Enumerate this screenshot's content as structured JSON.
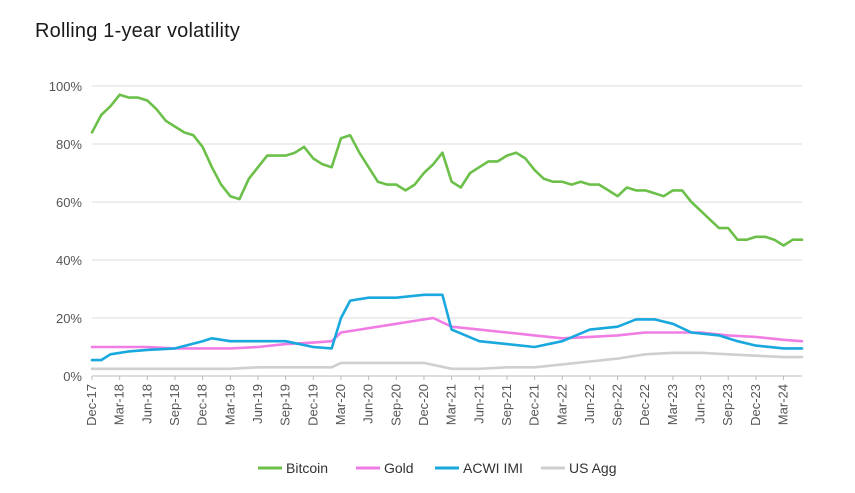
{
  "chart_data": {
    "type": "line",
    "title": "Rolling 1-year volatility",
    "xlabel": "",
    "ylabel": "",
    "ylim": [
      0,
      100
    ],
    "y_ticks": [
      0,
      20,
      40,
      60,
      80,
      100
    ],
    "y_tick_labels": [
      "0%",
      "20%",
      "40%",
      "60%",
      "80%",
      "100%"
    ],
    "x_ticks": [
      "2017-12",
      "2018-03",
      "2018-06",
      "2018-09",
      "2018-12",
      "2019-03",
      "2019-06",
      "2019-09",
      "2019-12",
      "2020-03",
      "2020-06",
      "2020-09",
      "2020-12",
      "2021-03",
      "2021-06",
      "2021-09",
      "2021-12",
      "2022-03",
      "2022-06",
      "2022-09",
      "2022-12",
      "2023-03",
      "2023-06",
      "2023-09",
      "2023-12",
      "2024-03"
    ],
    "x_tick_labels": [
      "Dec-17",
      "Mar-18",
      "Jun-18",
      "Sep-18",
      "Dec-18",
      "Mar-19",
      "Jun-19",
      "Sep-19",
      "Dec-19",
      "Mar-20",
      "Jun-20",
      "Sep-20",
      "Dec-20",
      "Mar-21",
      "Jun-21",
      "Sep-21",
      "Dec-21",
      "Mar-22",
      "Jun-22",
      "Sep-22",
      "Dec-22",
      "Mar-23",
      "Jun-23",
      "Sep-23",
      "Dec-23",
      "Mar-24"
    ],
    "x_range": [
      "2017-12",
      "2024-05"
    ],
    "grid": "horizontal",
    "legend_position": "bottom",
    "series": [
      {
        "name": "Bitcoin",
        "color": "#6cc04a",
        "points": [
          [
            "2017-12",
            84
          ],
          [
            "2018-01",
            90
          ],
          [
            "2018-02",
            93
          ],
          [
            "2018-03",
            97
          ],
          [
            "2018-04",
            96
          ],
          [
            "2018-05",
            96
          ],
          [
            "2018-06",
            95
          ],
          [
            "2018-07",
            92
          ],
          [
            "2018-08",
            88
          ],
          [
            "2018-09",
            86
          ],
          [
            "2018-10",
            84
          ],
          [
            "2018-11",
            83
          ],
          [
            "2018-12",
            79
          ],
          [
            "2019-01",
            72
          ],
          [
            "2019-02",
            66
          ],
          [
            "2019-03",
            62
          ],
          [
            "2019-04",
            61
          ],
          [
            "2019-05",
            68
          ],
          [
            "2019-06",
            72
          ],
          [
            "2019-07",
            76
          ],
          [
            "2019-08",
            76
          ],
          [
            "2019-09",
            76
          ],
          [
            "2019-10",
            77
          ],
          [
            "2019-11",
            79
          ],
          [
            "2019-12",
            75
          ],
          [
            "2020-01",
            73
          ],
          [
            "2020-02",
            72
          ],
          [
            "2020-03",
            82
          ],
          [
            "2020-04",
            83
          ],
          [
            "2020-05",
            77
          ],
          [
            "2020-06",
            72
          ],
          [
            "2020-07",
            67
          ],
          [
            "2020-08",
            66
          ],
          [
            "2020-09",
            66
          ],
          [
            "2020-10",
            64
          ],
          [
            "2020-11",
            66
          ],
          [
            "2020-12",
            70
          ],
          [
            "2021-01",
            73
          ],
          [
            "2021-02",
            77
          ],
          [
            "2021-03",
            67
          ],
          [
            "2021-04",
            65
          ],
          [
            "2021-05",
            70
          ],
          [
            "2021-06",
            72
          ],
          [
            "2021-07",
            74
          ],
          [
            "2021-08",
            74
          ],
          [
            "2021-09",
            76
          ],
          [
            "2021-10",
            77
          ],
          [
            "2021-11",
            75
          ],
          [
            "2021-12",
            71
          ],
          [
            "2022-01",
            68
          ],
          [
            "2022-02",
            67
          ],
          [
            "2022-03",
            67
          ],
          [
            "2022-04",
            66
          ],
          [
            "2022-05",
            67
          ],
          [
            "2022-06",
            66
          ],
          [
            "2022-07",
            66
          ],
          [
            "2022-08",
            64
          ],
          [
            "2022-09",
            62
          ],
          [
            "2022-10",
            65
          ],
          [
            "2022-11",
            64
          ],
          [
            "2022-12",
            64
          ],
          [
            "2023-01",
            63
          ],
          [
            "2023-02",
            62
          ],
          [
            "2023-03",
            64
          ],
          [
            "2023-04",
            64
          ],
          [
            "2023-05",
            60
          ],
          [
            "2023-06",
            57
          ],
          [
            "2023-07",
            54
          ],
          [
            "2023-08",
            51
          ],
          [
            "2023-09",
            51
          ],
          [
            "2023-10",
            47
          ],
          [
            "2023-11",
            47
          ],
          [
            "2023-12",
            48
          ],
          [
            "2024-01",
            48
          ],
          [
            "2024-02",
            47
          ],
          [
            "2024-03",
            45
          ],
          [
            "2024-04",
            47
          ],
          [
            "2024-05",
            47
          ]
        ]
      },
      {
        "name": "Gold",
        "color": "#f07de4",
        "points": [
          [
            "2017-12",
            10
          ],
          [
            "2018-03",
            10
          ],
          [
            "2018-06",
            10
          ],
          [
            "2018-09",
            9.5
          ],
          [
            "2018-12",
            9.5
          ],
          [
            "2019-03",
            9.5
          ],
          [
            "2019-06",
            10
          ],
          [
            "2019-09",
            11
          ],
          [
            "2019-12",
            11.5
          ],
          [
            "2020-02",
            12
          ],
          [
            "2020-03",
            15
          ],
          [
            "2020-05",
            16
          ],
          [
            "2020-07",
            17
          ],
          [
            "2020-09",
            18
          ],
          [
            "2020-11",
            19
          ],
          [
            "2021-01",
            20
          ],
          [
            "2021-03",
            17
          ],
          [
            "2021-06",
            16
          ],
          [
            "2021-09",
            15
          ],
          [
            "2021-12",
            14
          ],
          [
            "2022-03",
            13
          ],
          [
            "2022-06",
            13.5
          ],
          [
            "2022-09",
            14
          ],
          [
            "2022-12",
            15
          ],
          [
            "2023-03",
            15
          ],
          [
            "2023-06",
            15
          ],
          [
            "2023-09",
            14
          ],
          [
            "2023-12",
            13.5
          ],
          [
            "2024-03",
            12.5
          ],
          [
            "2024-05",
            12
          ]
        ]
      },
      {
        "name": "ACWI IMI",
        "color": "#19a8de",
        "points": [
          [
            "2017-12",
            5.5
          ],
          [
            "2018-01",
            5.5
          ],
          [
            "2018-02",
            7.5
          ],
          [
            "2018-04",
            8.5
          ],
          [
            "2018-06",
            9
          ],
          [
            "2018-09",
            9.5
          ],
          [
            "2018-12",
            12
          ],
          [
            "2019-01",
            13
          ],
          [
            "2019-03",
            12
          ],
          [
            "2019-06",
            12
          ],
          [
            "2019-09",
            12
          ],
          [
            "2019-12",
            10
          ],
          [
            "2020-02",
            9.5
          ],
          [
            "2020-03",
            20
          ],
          [
            "2020-04",
            26
          ],
          [
            "2020-06",
            27
          ],
          [
            "2020-09",
            27
          ],
          [
            "2020-12",
            28
          ],
          [
            "2021-02",
            28
          ],
          [
            "2021-03",
            16
          ],
          [
            "2021-06",
            12
          ],
          [
            "2021-09",
            11
          ],
          [
            "2021-12",
            10
          ],
          [
            "2022-03",
            12
          ],
          [
            "2022-06",
            16
          ],
          [
            "2022-09",
            17
          ],
          [
            "2022-11",
            19.5
          ],
          [
            "2023-01",
            19.5
          ],
          [
            "2023-03",
            18
          ],
          [
            "2023-05",
            15
          ],
          [
            "2023-08",
            14
          ],
          [
            "2023-10",
            12
          ],
          [
            "2023-12",
            10.5
          ],
          [
            "2024-03",
            9.5
          ],
          [
            "2024-05",
            9.5
          ]
        ]
      },
      {
        "name": "US Agg",
        "color": "#cfcfcf",
        "points": [
          [
            "2017-12",
            2.5
          ],
          [
            "2018-03",
            2.5
          ],
          [
            "2018-06",
            2.5
          ],
          [
            "2018-09",
            2.5
          ],
          [
            "2018-12",
            2.5
          ],
          [
            "2019-03",
            2.5
          ],
          [
            "2019-06",
            3
          ],
          [
            "2019-09",
            3
          ],
          [
            "2019-12",
            3
          ],
          [
            "2020-02",
            3
          ],
          [
            "2020-03",
            4.5
          ],
          [
            "2020-06",
            4.5
          ],
          [
            "2020-09",
            4.5
          ],
          [
            "2020-12",
            4.5
          ],
          [
            "2021-03",
            2.5
          ],
          [
            "2021-06",
            2.5
          ],
          [
            "2021-09",
            3
          ],
          [
            "2021-12",
            3
          ],
          [
            "2022-03",
            4
          ],
          [
            "2022-06",
            5
          ],
          [
            "2022-09",
            6
          ],
          [
            "2022-12",
            7.5
          ],
          [
            "2023-03",
            8
          ],
          [
            "2023-06",
            8
          ],
          [
            "2023-09",
            7.5
          ],
          [
            "2023-12",
            7
          ],
          [
            "2024-03",
            6.5
          ],
          [
            "2024-05",
            6.5
          ]
        ]
      }
    ]
  }
}
